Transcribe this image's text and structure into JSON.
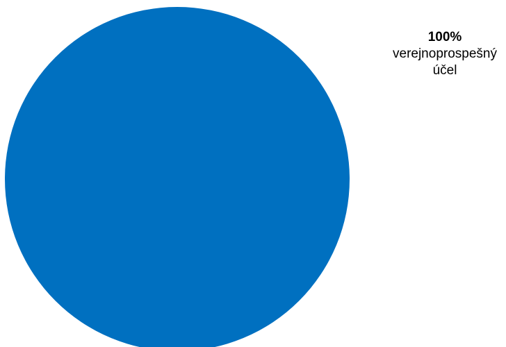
{
  "chart_data": {
    "type": "pie",
    "title": "",
    "categories": [
      "verejnoprospešný účel"
    ],
    "values": [
      100
    ],
    "colors": [
      "#0070C0"
    ],
    "data_labels": [
      {
        "percent_text": "100%",
        "category_text": "verejnoprospešný účel"
      }
    ]
  }
}
